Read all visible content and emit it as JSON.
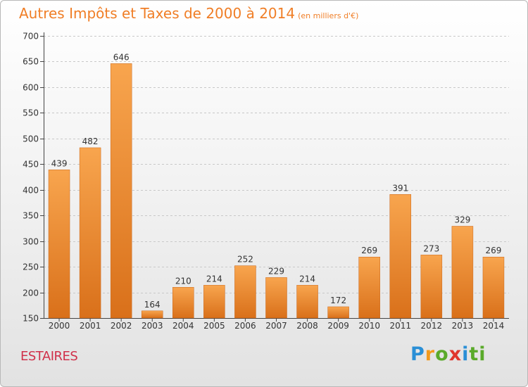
{
  "title": "Autres Impôts et Taxes de 2000 à 2014",
  "unit": "(en milliers d'€)",
  "town": "ESTAIRES",
  "logo": {
    "text": "Proxiti",
    "letters": [
      "P",
      "r",
      "o",
      "x",
      "i",
      "ti"
    ],
    "colors": [
      "#2a8fd6",
      "#f29a1e",
      "#5aaa2a",
      "#e0352c",
      "#2a8fd6",
      "#5aaa2a"
    ]
  },
  "colors": {
    "title": "#f07e26",
    "bar_top": "#f8a54e",
    "bar_bottom": "#d9701a",
    "town": "#d0304a",
    "grid": "#c8c8c8"
  },
  "chart_data": {
    "type": "bar",
    "title": "Autres Impôts et Taxes de 2000 à 2014",
    "subtitle": "(en milliers d'€)",
    "xlabel": "",
    "ylabel": "",
    "categories": [
      "2000",
      "2001",
      "2002",
      "2003",
      "2004",
      "2005",
      "2006",
      "2007",
      "2008",
      "2009",
      "2010",
      "2011",
      "2012",
      "2013",
      "2014"
    ],
    "values": [
      439,
      482,
      646,
      164,
      210,
      214,
      252,
      229,
      214,
      172,
      269,
      391,
      273,
      329,
      269
    ],
    "data_labels": [
      "439",
      "482",
      "646",
      "164",
      "210",
      "214",
      "252",
      "229",
      "214",
      "172",
      "269",
      "391",
      "273",
      "329",
      "269"
    ],
    "ylim": [
      150,
      700
    ],
    "yticks": [
      150,
      200,
      250,
      300,
      350,
      400,
      450,
      500,
      550,
      600,
      650,
      700
    ],
    "ytick_labels": [
      "150",
      "200",
      "250",
      "300",
      "350",
      "400",
      "450",
      "500",
      "550",
      "600",
      "650",
      "700"
    ],
    "grid": true,
    "legend": "none"
  }
}
